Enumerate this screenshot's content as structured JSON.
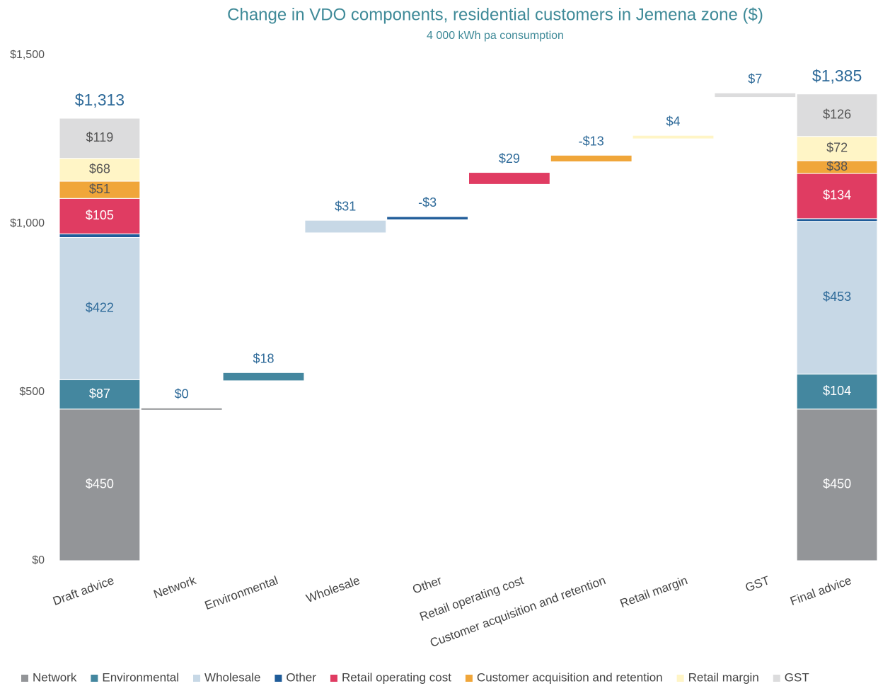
{
  "chart_data": {
    "type": "waterfall",
    "title": "Change in VDO components, residential customers in Jemena zone ($)",
    "subtitle": "4 000 kWh pa consumption",
    "categories": [
      "Draft advice",
      "Network",
      "Environmental",
      "Wholesale",
      "Other",
      "Retail operating cost",
      "Customer acquisition and retention",
      "Retail margin",
      "GST",
      "Final advice"
    ],
    "series": [
      {
        "name": "Network",
        "color": "#939598",
        "values": [
          450,
          null,
          null,
          null,
          null,
          null,
          null,
          null,
          null,
          450
        ],
        "value_labels": [
          "$450",
          null,
          null,
          null,
          null,
          null,
          null,
          null,
          null,
          "$450"
        ]
      },
      {
        "name": "Environmental",
        "color": "#44879f",
        "values": [
          87,
          null,
          null,
          null,
          null,
          null,
          null,
          null,
          null,
          104
        ],
        "value_labels": [
          "$87",
          null,
          null,
          null,
          null,
          null,
          null,
          null,
          null,
          "$104"
        ]
      },
      {
        "name": "Wholesale",
        "color": "#c7d8e6",
        "values": [
          422,
          null,
          null,
          null,
          null,
          null,
          null,
          null,
          null,
          453
        ],
        "value_labels": [
          "$422",
          null,
          null,
          null,
          null,
          null,
          null,
          null,
          null,
          "$453"
        ]
      },
      {
        "name": "Other",
        "color": "#1f5c99",
        "values": [
          11,
          null,
          null,
          null,
          null,
          null,
          null,
          null,
          null,
          8
        ]
      },
      {
        "name": "Retail operating cost",
        "color": "#e03c62",
        "values": [
          105,
          null,
          null,
          null,
          null,
          null,
          null,
          null,
          null,
          134
        ],
        "value_labels": [
          "$105",
          null,
          null,
          null,
          null,
          null,
          null,
          null,
          null,
          "$134"
        ]
      },
      {
        "name": "Customer acquisition and retention",
        "color": "#f0a63a",
        "values": [
          51,
          null,
          null,
          null,
          null,
          null,
          null,
          null,
          null,
          38
        ],
        "value_labels": [
          "$51",
          null,
          null,
          null,
          null,
          null,
          null,
          null,
          null,
          "$38"
        ]
      },
      {
        "name": "Retail margin",
        "color": "#fff5c6",
        "values": [
          68,
          null,
          null,
          null,
          null,
          null,
          null,
          null,
          null,
          72
        ],
        "value_labels": [
          "$68",
          null,
          null,
          null,
          null,
          null,
          null,
          null,
          null,
          "$72"
        ]
      },
      {
        "name": "GST",
        "color": "#dcdcdd",
        "values": [
          119,
          null,
          null,
          null,
          null,
          null,
          null,
          null,
          null,
          126
        ],
        "value_labels": [
          "$119",
          null,
          null,
          null,
          null,
          null,
          null,
          null,
          null,
          "$126"
        ]
      }
    ],
    "changes": [
      null,
      0,
      18,
      31,
      -3,
      29,
      -13,
      4,
      7,
      null
    ],
    "change_labels": [
      null,
      "$0",
      "$18",
      "$31",
      "-$3",
      "$29",
      "-$13",
      "$4",
      "$7",
      null
    ],
    "totals": [
      1313,
      null,
      null,
      null,
      null,
      null,
      null,
      null,
      null,
      1385
    ],
    "total_labels": [
      "$1,313",
      null,
      null,
      null,
      null,
      null,
      null,
      null,
      null,
      "$1,385"
    ],
    "ylim": [
      0,
      1500
    ],
    "yticks": [
      {
        "value": 0,
        "label": "$0"
      },
      {
        "value": 500,
        "label": "$500"
      },
      {
        "value": 1000,
        "label": "$1,000"
      },
      {
        "value": 1500,
        "label": "$1,500"
      }
    ],
    "grid": false,
    "legend": "bottom"
  }
}
